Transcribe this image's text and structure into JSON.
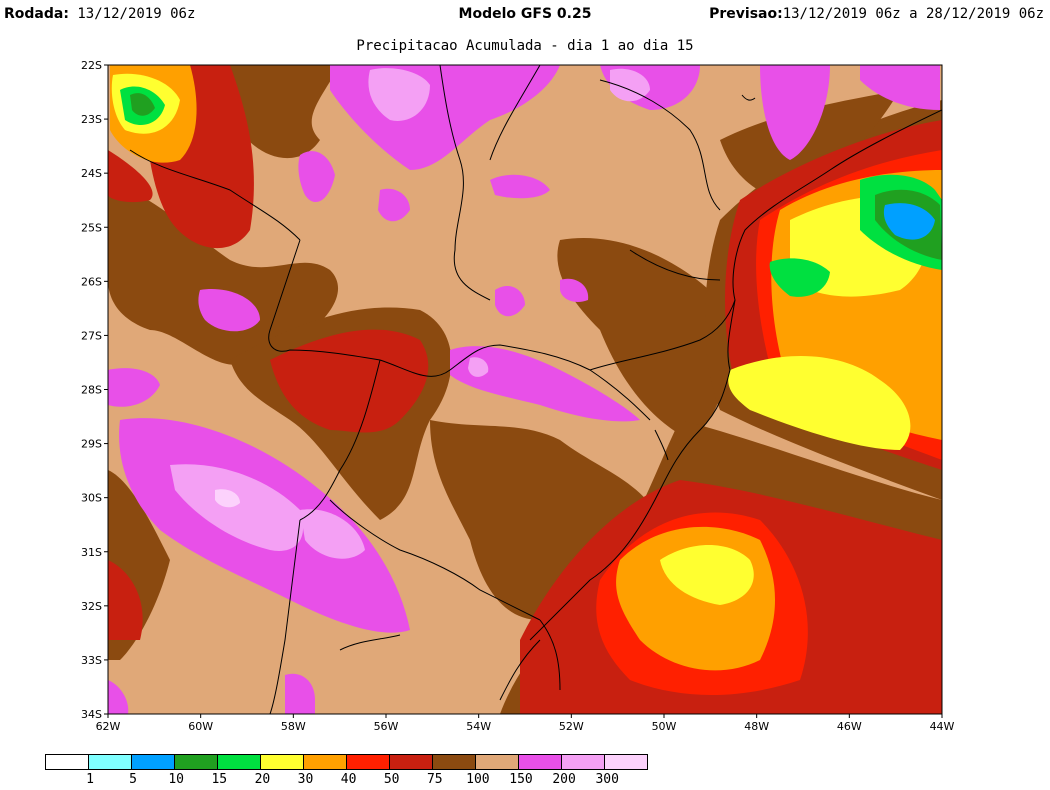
{
  "header": {
    "rodada_label": "Rodada:",
    "rodada_value": "13/12/2019 06z",
    "model": "Modelo GFS 0.25",
    "previsao_label": "Previsao:",
    "previsao_value": "13/12/2019 06z a 28/12/2019 06z"
  },
  "subtitle": "Precipitacao Acumulada - dia 1 ao dia 15",
  "axes": {
    "y_ticks": [
      "22S",
      "23S",
      "24S",
      "25S",
      "26S",
      "27S",
      "28S",
      "29S",
      "30S",
      "31S",
      "32S",
      "33S",
      "34S"
    ],
    "x_ticks": [
      "62W",
      "60W",
      "58W",
      "56W",
      "54W",
      "52W",
      "50W",
      "48W",
      "46W",
      "44W"
    ]
  },
  "legend": {
    "colors": [
      "#ffffff",
      "#80ffff",
      "#00a0ff",
      "#20a020",
      "#00e040",
      "#ffff30",
      "#ffa000",
      "#ff2000",
      "#c82010",
      "#8b4a10",
      "#e0a878",
      "#e850e8",
      "#f4a0f4",
      "#fcd2fc"
    ],
    "labels": [
      "1",
      "5",
      "10",
      "15",
      "20",
      "30",
      "40",
      "50",
      "75",
      "100",
      "150",
      "200",
      "300"
    ]
  },
  "palette": {
    "tan": "#e0a878",
    "brown": "#8b4a10",
    "darkred": "#c82010",
    "red": "#ff2000",
    "orange": "#ffa000",
    "yellow": "#ffff30",
    "green": "#00e040",
    "darkgreen": "#20a020",
    "blue": "#00a0ff",
    "magenta": "#e850e8",
    "pink": "#f4a0f4"
  }
}
